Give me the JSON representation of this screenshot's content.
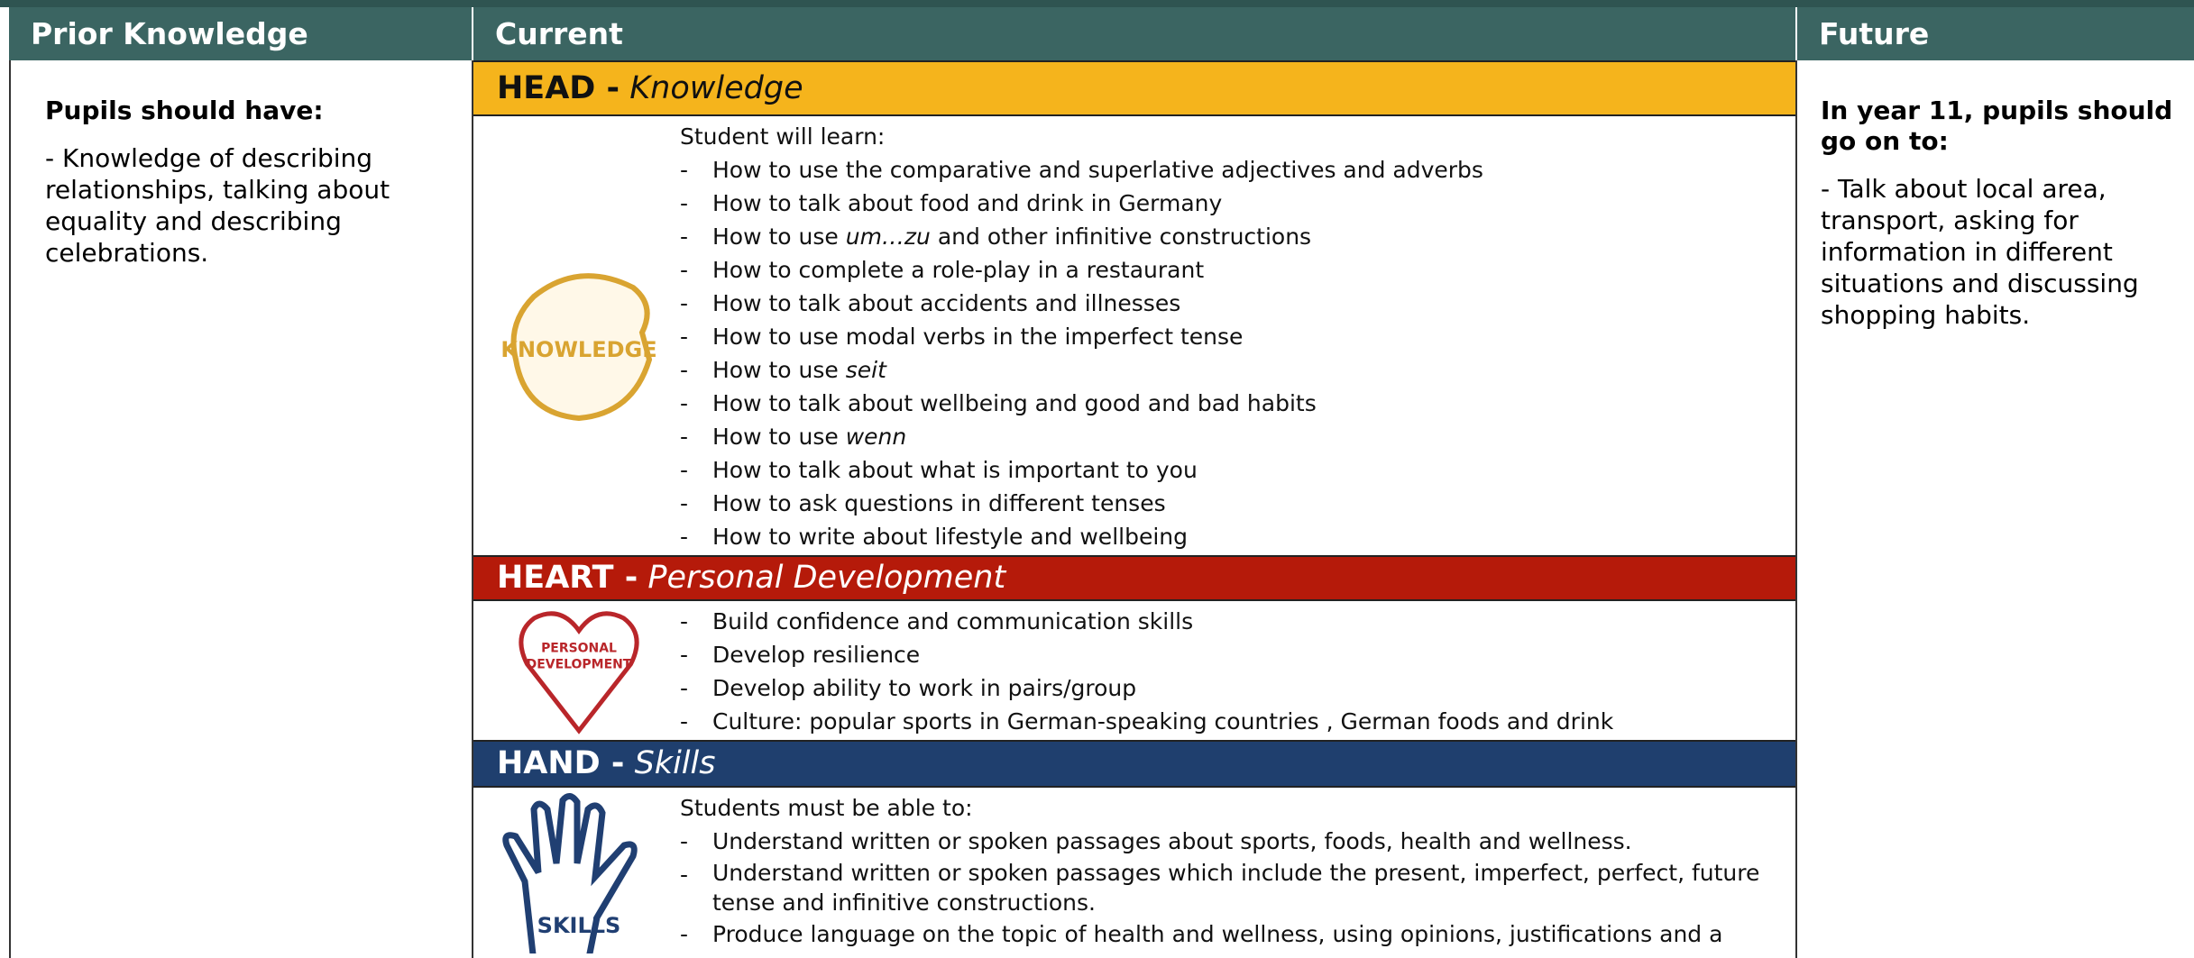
{
  "headers": {
    "prior": "Prior Knowledge",
    "current": "Current",
    "future": "Future"
  },
  "prior": {
    "heading": "Pupils should have:",
    "text": "- Knowledge of describing relationships, talking about equality and describing celebrations."
  },
  "future": {
    "heading": "In year 11, pupils should go on to:",
    "text": "- Talk about local area, transport, asking for information in different situations and discussing shopping habits."
  },
  "bullet": "-",
  "sections": [
    {
      "label": "HEAD -",
      "subtitle": "Knowledge",
      "icon_text": [
        "KNOWLEDGE"
      ],
      "intro": "Student will learn:",
      "items": [
        [
          {
            "text": "How to use the comparative and superlative adjectives and adverbs"
          }
        ],
        [
          {
            "text": "How to talk about food and drink in Germany"
          }
        ],
        [
          {
            "text": "How to use "
          },
          {
            "text": "um…zu",
            "italic": true
          },
          {
            "text": " and other infinitive constructions"
          }
        ],
        [
          {
            "text": "How to complete a role-play in a restaurant"
          }
        ],
        [
          {
            "text": "How to talk about accidents and illnesses"
          }
        ],
        [
          {
            "text": "How to use modal verbs in the imperfect tense"
          }
        ],
        [
          {
            "text": "How to use "
          },
          {
            "text": "seit",
            "italic": true
          }
        ],
        [
          {
            "text": "How to talk about wellbeing and good and bad habits"
          }
        ],
        [
          {
            "text": "How to use "
          },
          {
            "text": "wenn",
            "italic": true
          }
        ],
        [
          {
            "text": "How to talk about what is important to you"
          }
        ],
        [
          {
            "text": "How to ask questions in different tenses"
          }
        ],
        [
          {
            "text": "How to write about lifestyle and wellbeing"
          }
        ]
      ]
    },
    {
      "label": "HEART -",
      "subtitle": "Personal Development",
      "icon_text": [
        "PERSONAL",
        "DEVELOPMENT"
      ],
      "items": [
        [
          {
            "text": "Build confidence and communication skills"
          }
        ],
        [
          {
            "text": "Develop resilience"
          }
        ],
        [
          {
            "text": "Develop ability to work in pairs/group"
          }
        ],
        [
          {
            "text": "Culture: popular sports in German-speaking countries , German foods and drink"
          }
        ]
      ]
    },
    {
      "label": "HAND -",
      "subtitle": "Skills",
      "icon_text": [
        "SKILLS"
      ],
      "intro": "Students must be able to:",
      "items": [
        [
          {
            "text": "Understand written or spoken passages about sports, foods, health and wellness."
          }
        ],
        [
          {
            "text": "Understand written or spoken passages which include the present, imperfect, perfect, future tense and infinitive constructions."
          }
        ],
        [
          {
            "text": "Produce language on the topic of health and wellness, using opinions, justifications and a"
          }
        ]
      ]
    }
  ]
}
